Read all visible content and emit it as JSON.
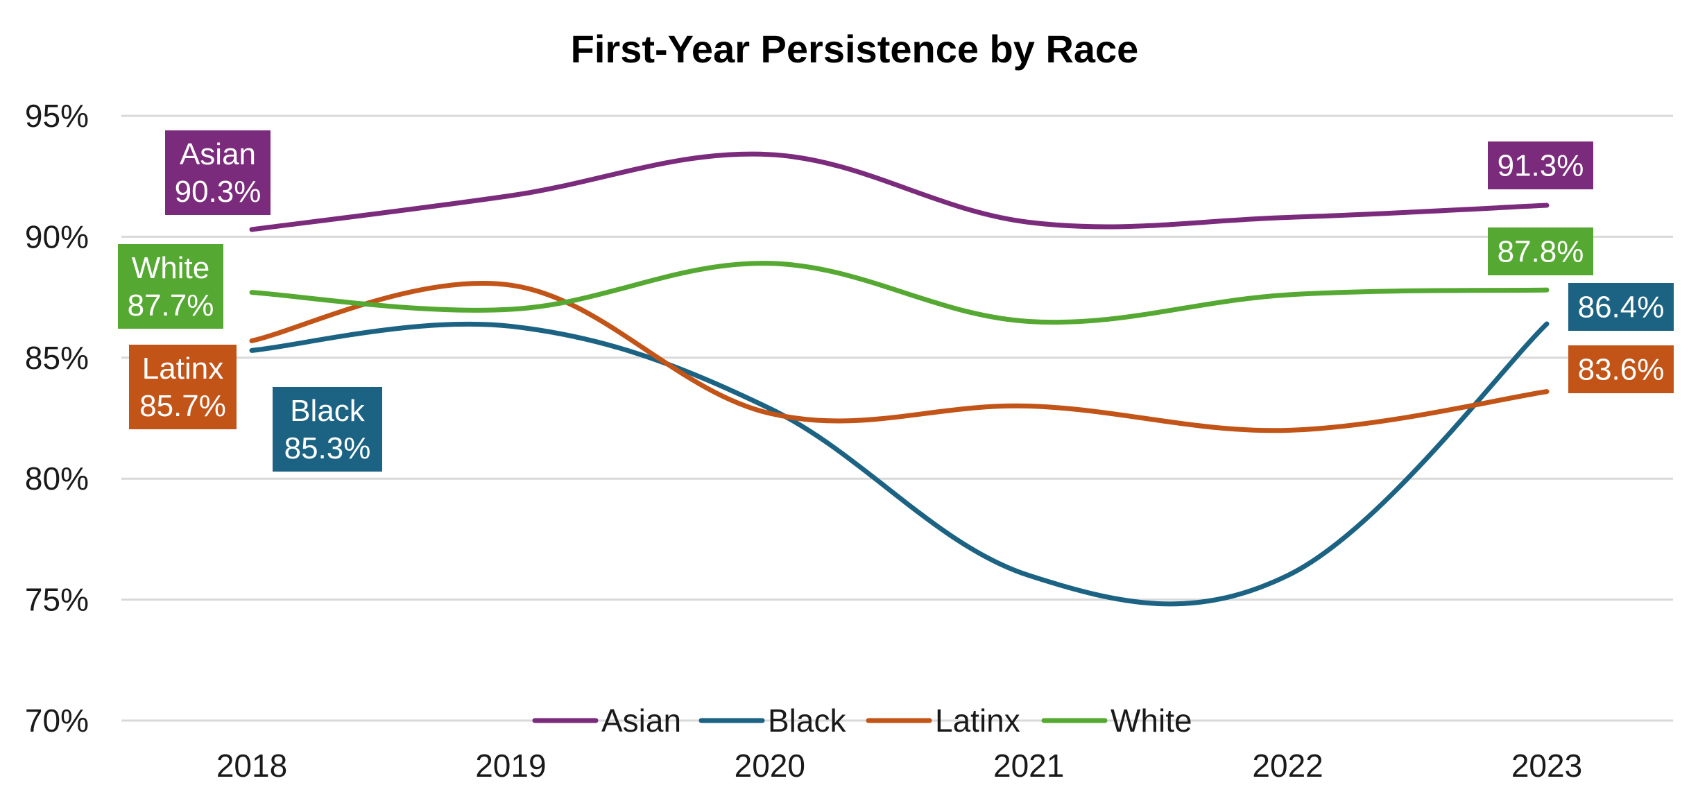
{
  "chart_data": {
    "type": "line",
    "title": "First-Year Persistence by Race",
    "xlabel": "",
    "ylabel": "",
    "categories": [
      "2018",
      "2019",
      "2020",
      "2021",
      "2022",
      "2023"
    ],
    "ylim": [
      70,
      95
    ],
    "yticks": [
      "70%",
      "75%",
      "80%",
      "85%",
      "90%",
      "95%"
    ],
    "grid": true,
    "legend_position": "bottom",
    "series": [
      {
        "name": "Asian",
        "color": "#7B2B7B",
        "values": [
          90.3,
          91.7,
          93.4,
          90.6,
          90.8,
          91.3
        ],
        "start_label": [
          "Asian",
          "90.3%"
        ],
        "end_label": [
          "91.3%"
        ]
      },
      {
        "name": "Black",
        "color": "#1C6383",
        "values": [
          85.3,
          86.3,
          82.9,
          76.0,
          76.0,
          86.4
        ],
        "start_label": [
          "Black",
          "85.3%"
        ],
        "end_label": [
          "86.4%"
        ]
      },
      {
        "name": "Latinx",
        "color": "#C25418",
        "values": [
          85.7,
          88.0,
          82.7,
          83.0,
          82.0,
          83.6
        ],
        "start_label": [
          "Latinx",
          "85.7%"
        ],
        "end_label": [
          "83.6%"
        ]
      },
      {
        "name": "White",
        "color": "#55A932",
        "values": [
          87.7,
          87.0,
          88.9,
          86.5,
          87.6,
          87.8
        ],
        "start_label": [
          "White",
          "87.7%"
        ],
        "end_label": [
          "87.8%"
        ]
      }
    ]
  }
}
